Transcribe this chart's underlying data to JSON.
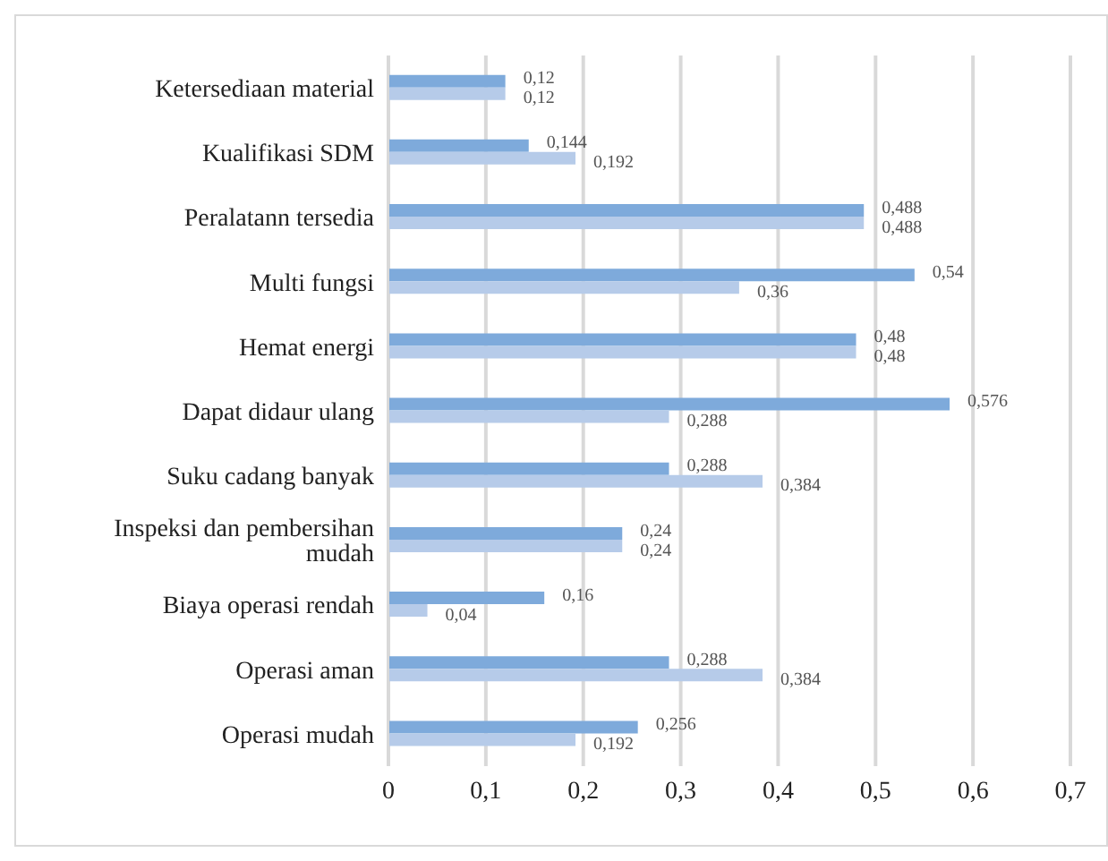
{
  "chart_data": {
    "type": "bar",
    "orientation": "horizontal",
    "categories": [
      "Ketersediaan material",
      "Kualifikasi SDM",
      "Peralatann tersedia",
      "Multi fungsi",
      "Hemat energi",
      "Dapat didaur ulang",
      "Suku cadang banyak",
      "Inspeksi dan pembersihan mudah",
      "Biaya operasi rendah",
      "Operasi aman",
      "Operasi mudah"
    ],
    "series": [
      {
        "color": "#7eaadb",
        "values": [
          0.12,
          0.144,
          0.488,
          0.54,
          0.48,
          0.576,
          0.288,
          0.24,
          0.16,
          0.288,
          0.256
        ],
        "value_labels": [
          "0,12",
          "0,144",
          "0,488",
          "0,54",
          "0,48",
          "0,576",
          "0,288",
          "0,24",
          "0,16",
          "0,288",
          "0,256"
        ]
      },
      {
        "color": "#b6cbe9",
        "values": [
          0.12,
          0.192,
          0.488,
          0.36,
          0.48,
          0.288,
          0.384,
          0.24,
          0.04,
          0.384,
          0.192
        ],
        "value_labels": [
          "0,12",
          "0,192",
          "0,488",
          "0,36",
          "0,48",
          "0,288",
          "0,384",
          "0,24",
          "0,04",
          "0,384",
          "0,192"
        ]
      }
    ],
    "xlim": [
      0,
      0.7
    ],
    "xticks": [
      0,
      {
        "value": 0.1,
        "label": "0,1"
      },
      {
        "value": 0.2,
        "label": "0,2"
      },
      {
        "value": 0.3,
        "label": "0,3"
      },
      {
        "value": 0.4,
        "label": "0,4"
      },
      {
        "value": 0.5,
        "label": "0,5"
      },
      {
        "value": 0.6,
        "label": "0,6"
      },
      {
        "value": 0.7,
        "label": "0,7"
      }
    ],
    "grid": "x",
    "legend": false
  }
}
